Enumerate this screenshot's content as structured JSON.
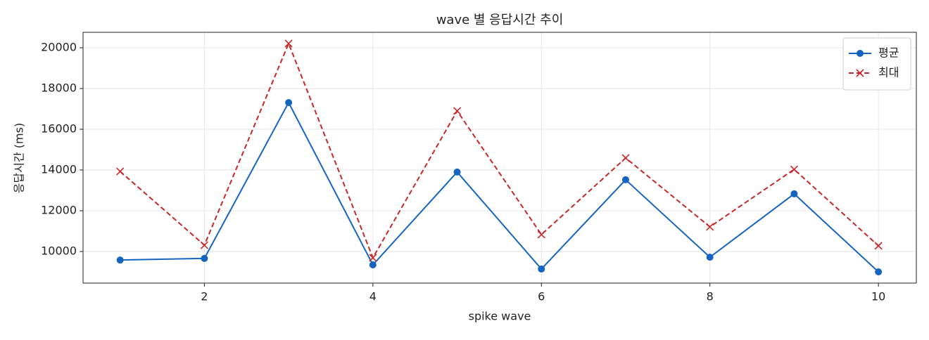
{
  "chart_data": {
    "type": "line",
    "title": "wave 별 응답시간 추이",
    "x_label": "spike wave",
    "y_label": "응답시간 (ms)",
    "x": [
      1,
      2,
      3,
      4,
      5,
      6,
      7,
      8,
      9,
      10
    ],
    "series": [
      {
        "name": "평균",
        "color": "#1565c0",
        "marker": "circle",
        "linestyle": "solid",
        "values": [
          9580,
          9660,
          17310,
          9345,
          13900,
          9140,
          13520,
          9720,
          12830,
          9000
        ]
      },
      {
        "name": "최대",
        "color": "#c62828",
        "marker": "x",
        "linestyle": "dashed",
        "values": [
          13930,
          10310,
          20210,
          9690,
          16900,
          10830,
          14590,
          11210,
          14030,
          10280
        ]
      }
    ],
    "xlim": [
      0.56,
      10.45
    ],
    "xticks": [
      2,
      4,
      6,
      8,
      10
    ],
    "ylim": [
      8448,
      20759
    ],
    "yticks": [
      10000,
      12000,
      14000,
      16000,
      18000,
      20000
    ],
    "grid": true,
    "legend": "upper right"
  }
}
